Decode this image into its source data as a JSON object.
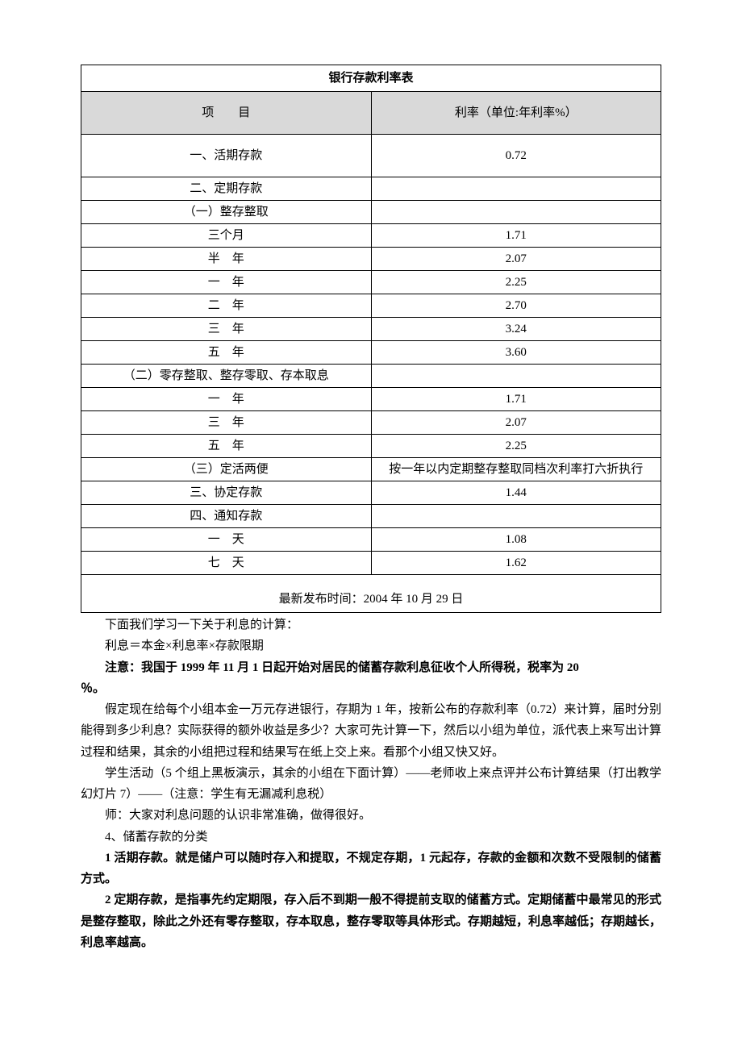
{
  "table": {
    "title": "银行存款利率表",
    "header_item": "项　　目",
    "header_rate": "利率（单位:年利率%）",
    "rows": [
      {
        "label": "一、活期存款",
        "value": "0.72",
        "tall": true
      },
      {
        "label": "二、定期存款",
        "value": ""
      },
      {
        "label": "（一）整存整取",
        "value": ""
      },
      {
        "label": "三个月",
        "value": "1.71"
      },
      {
        "label": "半　年",
        "value": "2.07"
      },
      {
        "label": "一　年",
        "value": "2.25"
      },
      {
        "label": "二　年",
        "value": "2.70"
      },
      {
        "label": "三　年",
        "value": "3.24"
      },
      {
        "label": "五　年",
        "value": "3.60"
      },
      {
        "label": "（二）零存整取、整存零取、存本取息",
        "value": ""
      },
      {
        "label": "一　年",
        "value": "1.71"
      },
      {
        "label": "三　年",
        "value": "2.07"
      },
      {
        "label": "五　年",
        "value": "2.25"
      },
      {
        "label": "（三）定活两便",
        "value": "按一年以内定期整存整取同档次利率打六折执行"
      },
      {
        "label": "三、协定存款",
        "value": "1.44"
      },
      {
        "label": "四、通知存款",
        "value": ""
      },
      {
        "label": "一　天",
        "value": "1.08"
      },
      {
        "label": "七　天",
        "value": "1.62"
      }
    ],
    "caption": "最新发布时间：2004 年 10 月 29 日"
  },
  "body": {
    "p1": "下面我们学习一下关于利息的计算：",
    "p2": "利息＝本金×利息率×存款限期",
    "p3a": "注意：我国于 1999 年 11 月 1 日起开始对居民的储蓄存款利息征收个人所得税，税率为 20",
    "p3b": "％。",
    "p4": "假定现在给每个小组本金一万元存进银行，存期为 1 年，按新公布的存款利率（0.72）来计算，届时分别能得到多少利息？实际获得的额外收益是多少？大家可先计算一下，然后以小组为单位，派代表上来写出计算过程和结果，其余的小组把过程和结果写在纸上交上来。看那个小组又快又好。",
    "p5": "学生活动（5 个组上黑板演示，其余的小组在下面计算）——老师收上来点评并公布计算结果（打出教学幻灯片 7）——（注意：学生有无漏减利息税）",
    "p6": "师：大家对利息问题的认识非常准确，做得很好。",
    "p7": "4、储蓄存款的分类",
    "p8": "1 活期存款。就是储户可以随时存入和提取，不规定存期，1 元起存，存款的金额和次数不受限制的储蓄方式。",
    "p9": "2 定期存款，是指事先约定期限，存入后不到期一般不得提前支取的储蓄方式。定期储蓄中最常见的形式是整存整取，除此之外还有零存整取，存本取息，整存零取等具体形式。存期越短，利息率越低；存期越长，利息率越高。"
  }
}
